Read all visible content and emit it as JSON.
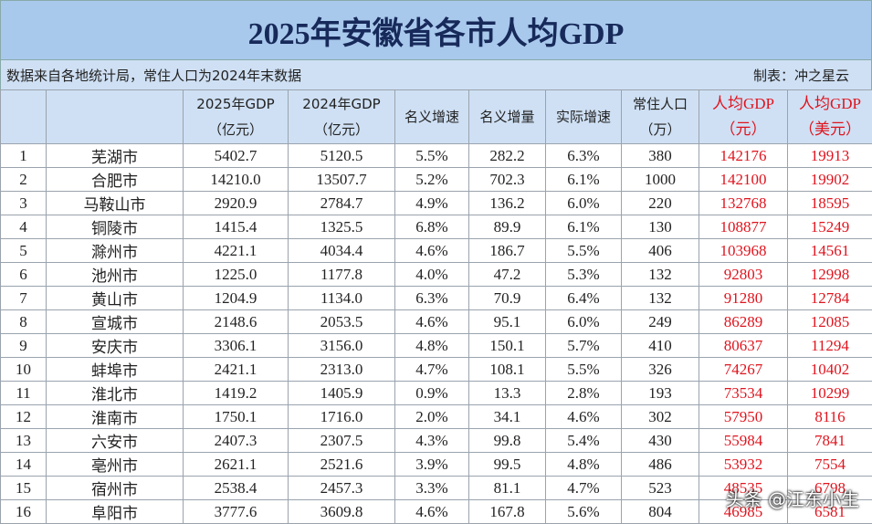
{
  "title": "2025年安徽省各市人均GDP",
  "note": "数据来自各地统计局，常住人口为2024年末数据",
  "author": "制表：冲之星云",
  "table": {
    "header": [
      [],
      [],
      [
        "2025年GDP",
        "（亿元）"
      ],
      [
        "2024年GDP",
        "（亿元）"
      ],
      [
        "名义增速"
      ],
      [
        "名义增量"
      ],
      [
        "实际增速"
      ],
      [
        "常住人口",
        "（万）"
      ],
      [
        "人均GDP",
        "（元）"
      ],
      [
        "人均GDP",
        "（美元）"
      ]
    ],
    "rows": [
      [
        "1",
        "芜湖市",
        "5402.7",
        "5120.5",
        "5.5%",
        "282.2",
        "6.3%",
        "380",
        "142176",
        "19913"
      ],
      [
        "2",
        "合肥市",
        "14210.0",
        "13507.7",
        "5.2%",
        "702.3",
        "6.1%",
        "1000",
        "142100",
        "19902"
      ],
      [
        "3",
        "马鞍山市",
        "2920.9",
        "2784.7",
        "4.9%",
        "136.2",
        "6.0%",
        "220",
        "132768",
        "18595"
      ],
      [
        "4",
        "铜陵市",
        "1415.4",
        "1325.5",
        "6.8%",
        "89.9",
        "6.1%",
        "130",
        "108877",
        "15249"
      ],
      [
        "5",
        "滁州市",
        "4221.1",
        "4034.4",
        "4.6%",
        "186.7",
        "5.5%",
        "406",
        "103968",
        "14561"
      ],
      [
        "6",
        "池州市",
        "1225.0",
        "1177.8",
        "4.0%",
        "47.2",
        "5.3%",
        "132",
        "92803",
        "12998"
      ],
      [
        "7",
        "黄山市",
        "1204.9",
        "1134.0",
        "6.3%",
        "70.9",
        "6.4%",
        "132",
        "91280",
        "12784"
      ],
      [
        "8",
        "宣城市",
        "2148.6",
        "2053.5",
        "4.6%",
        "95.1",
        "6.0%",
        "249",
        "86289",
        "12085"
      ],
      [
        "9",
        "安庆市",
        "3306.1",
        "3156.0",
        "4.8%",
        "150.1",
        "5.7%",
        "410",
        "80637",
        "11294"
      ],
      [
        "10",
        "蚌埠市",
        "2421.1",
        "2313.0",
        "4.7%",
        "108.1",
        "5.5%",
        "326",
        "74267",
        "10402"
      ],
      [
        "11",
        "淮北市",
        "1419.2",
        "1405.9",
        "0.9%",
        "13.3",
        "2.8%",
        "193",
        "73534",
        "10299"
      ],
      [
        "12",
        "淮南市",
        "1750.1",
        "1716.0",
        "2.0%",
        "34.1",
        "4.6%",
        "302",
        "57950",
        "8116"
      ],
      [
        "13",
        "六安市",
        "2407.3",
        "2307.5",
        "4.3%",
        "99.8",
        "5.4%",
        "430",
        "55984",
        "7841"
      ],
      [
        "14",
        "亳州市",
        "2621.1",
        "2521.6",
        "3.9%",
        "99.5",
        "4.8%",
        "486",
        "53932",
        "7554"
      ],
      [
        "15",
        "宿州市",
        "2538.4",
        "2457.3",
        "3.3%",
        "81.1",
        "4.7%",
        "523",
        "48535",
        "6798"
      ],
      [
        "16",
        "阜阳市",
        "3777.6",
        "3609.8",
        "4.6%",
        "167.8",
        "5.6%",
        "804",
        "46985",
        "6581"
      ]
    ]
  },
  "watermark": "头条 @江东小生"
}
